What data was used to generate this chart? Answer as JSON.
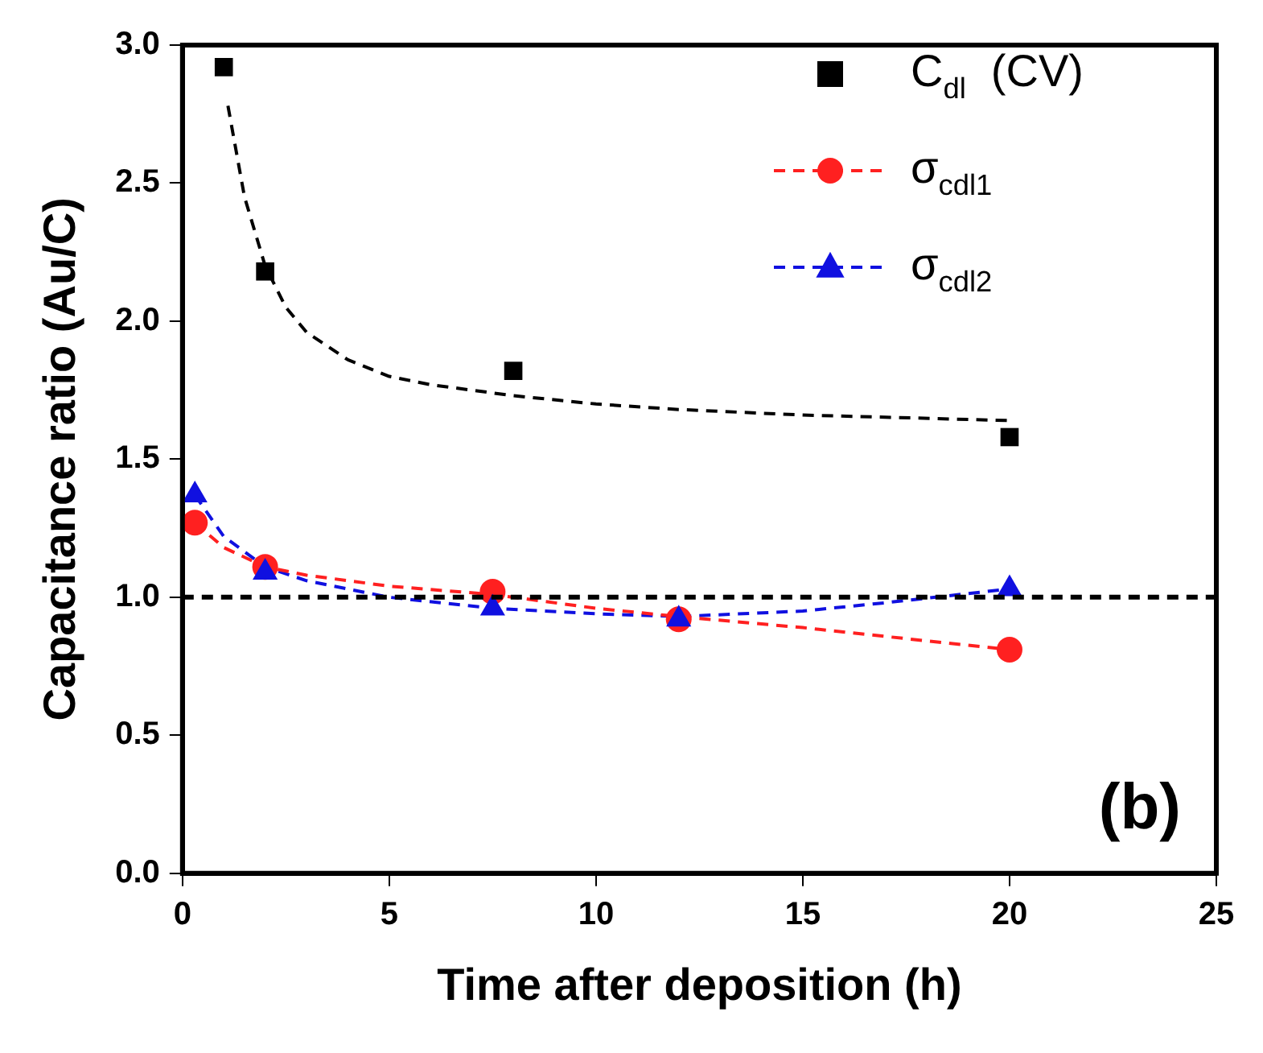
{
  "chart_data": {
    "type": "scatter",
    "xlabel": "Time after deposition (h)",
    "ylabel": "Capacitance ratio (Au/C)",
    "xlim": [
      0,
      25
    ],
    "xticks": [
      0,
      5,
      10,
      15,
      20,
      25
    ],
    "ylim": [
      0,
      3
    ],
    "yticks": [
      {
        "value": 0,
        "label": "0.0"
      },
      0.5,
      {
        "value": 1,
        "label": "1.0"
      },
      1.5,
      {
        "value": 2,
        "label": "2.0"
      },
      2.5,
      {
        "value": 3,
        "label": "3.0"
      }
    ],
    "grid": false,
    "legend": "top right",
    "series": [
      {
        "type": "line",
        "color": "#000000",
        "line_style": "dashed",
        "marker": "none",
        "x": [
          1.1,
          1.5,
          2,
          2.5,
          3,
          4,
          5,
          6,
          8,
          10,
          12,
          15,
          20
        ],
        "values": [
          2.78,
          2.45,
          2.2,
          2.05,
          1.96,
          1.86,
          1.8,
          1.77,
          1.73,
          1.7,
          1.68,
          1.66,
          1.64
        ]
      },
      {
        "type": "line",
        "color": "#ff2020",
        "line_style": "dashed",
        "marker": "none",
        "x": [
          0.3,
          1,
          2,
          3,
          5,
          7.5,
          10,
          12,
          15,
          20
        ],
        "values": [
          1.27,
          1.18,
          1.11,
          1.08,
          1.04,
          1.01,
          0.96,
          0.93,
          0.89,
          0.81
        ]
      },
      {
        "type": "line",
        "color": "#1010e0",
        "line_style": "dashed",
        "marker": "none",
        "x": [
          0.3,
          1,
          2,
          3,
          5,
          7.5,
          10,
          12,
          15,
          17,
          20
        ],
        "values": [
          1.37,
          1.22,
          1.11,
          1.06,
          1.0,
          0.96,
          0.94,
          0.93,
          0.95,
          0.98,
          1.03
        ]
      },
      {
        "name": "C$_{dl}$  (CV)",
        "type": "scatter",
        "color": "#000000",
        "marker": "square",
        "x": [
          1,
          2,
          8,
          20
        ],
        "values": [
          2.92,
          2.18,
          1.82,
          1.58
        ]
      },
      {
        "name": "σ$_{cdl1}$",
        "type": "scatter",
        "color": "#ff2020",
        "marker": "circle",
        "line_style": "dashed",
        "x": [
          0.3,
          2,
          7.5,
          12,
          20
        ],
        "values": [
          1.27,
          1.11,
          1.02,
          0.92,
          0.81
        ]
      },
      {
        "name": "σ$_{cdl2}$",
        "type": "scatter",
        "color": "#1010e0",
        "marker": "triangle",
        "line_style": "dashed",
        "x": [
          0.3,
          2,
          7.5,
          12,
          20
        ],
        "values": [
          1.37,
          1.09,
          0.96,
          0.92,
          1.03
        ]
      }
    ],
    "ref_lines": [
      {
        "axis": "y",
        "value": 1.0,
        "color": "#000000",
        "line_style": "dashed"
      }
    ],
    "annotations": [
      "(b)"
    ]
  }
}
